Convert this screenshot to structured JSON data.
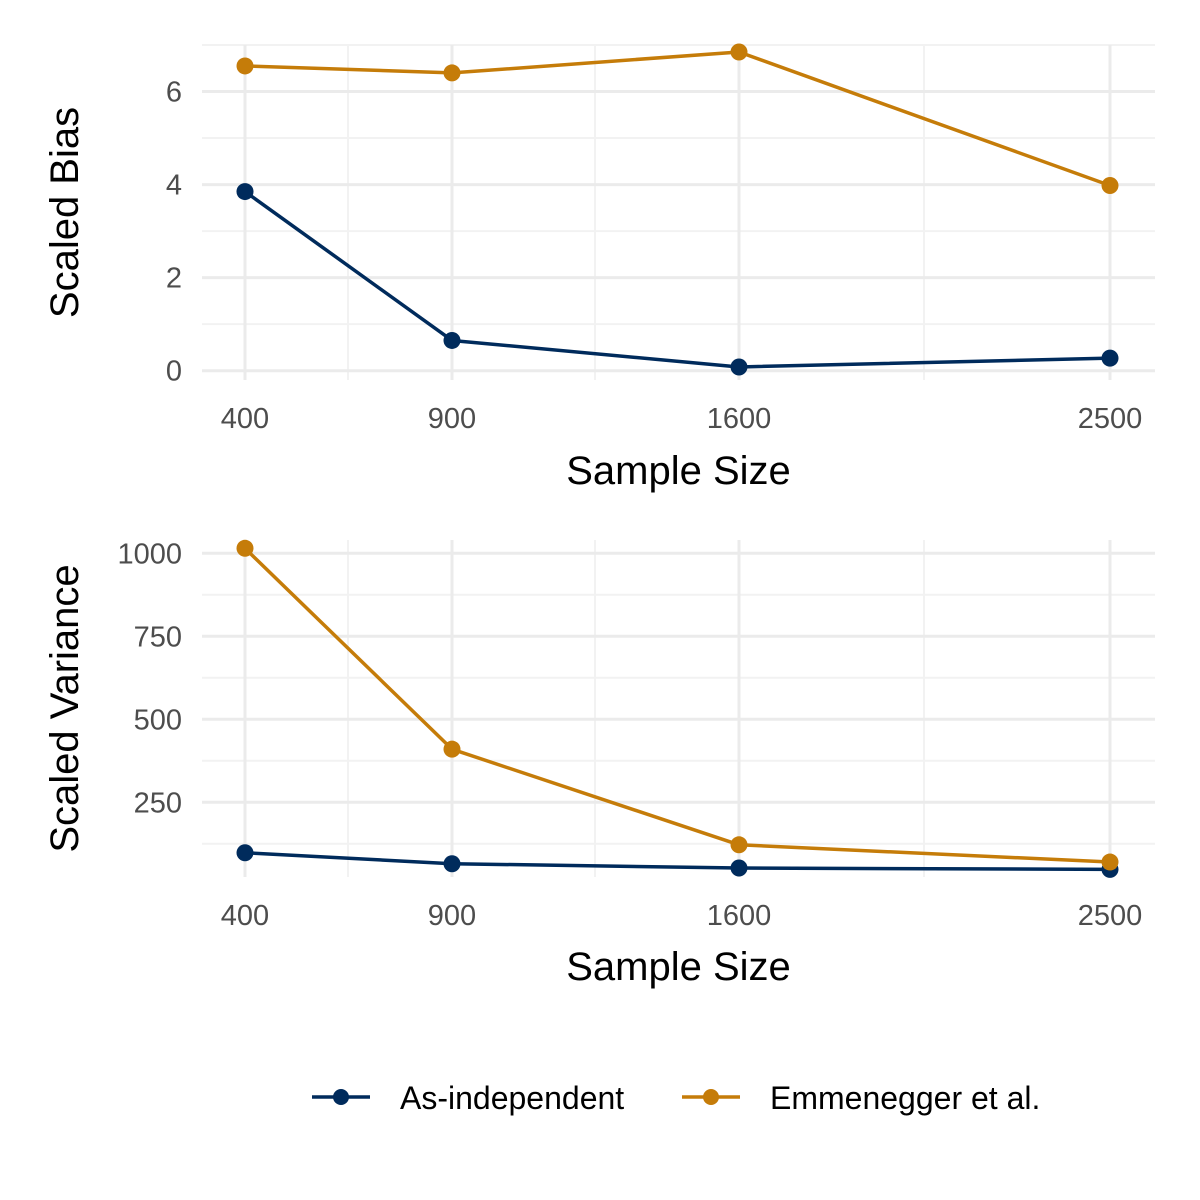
{
  "chart_data": [
    {
      "type": "line",
      "xlabel": "Sample Size",
      "ylabel": "Scaled Bias",
      "x_tick_labels": [
        "400",
        "900",
        "1600",
        "2500"
      ],
      "y_tick_labels": [
        "0",
        "2",
        "4",
        "6"
      ],
      "y_ticks": [
        0,
        2,
        4,
        6
      ],
      "ylim": [
        -0.2,
        7.0
      ],
      "x": [
        400,
        900,
        1600,
        2500
      ],
      "series": [
        {
          "name": "As-independent",
          "values": [
            3.85,
            0.65,
            0.08,
            0.27
          ]
        },
        {
          "name": "Emmenegger et al.",
          "values": [
            6.55,
            6.4,
            6.85,
            3.98
          ]
        }
      ]
    },
    {
      "type": "line",
      "xlabel": "Sample Size",
      "ylabel": "Scaled Variance",
      "x_tick_labels": [
        "400",
        "900",
        "1600",
        "2500"
      ],
      "y_tick_labels": [
        "250",
        "500",
        "750",
        "1000"
      ],
      "y_ticks": [
        250,
        500,
        750,
        1000
      ],
      "ylim": [
        25,
        1040
      ],
      "x": [
        400,
        900,
        1600,
        2500
      ],
      "series": [
        {
          "name": "As-independent",
          "values": [
            98,
            65,
            52,
            48
          ]
        },
        {
          "name": "Emmenegger et al.",
          "values": [
            1015,
            410,
            122,
            70
          ]
        }
      ]
    }
  ],
  "legend": {
    "items": [
      {
        "label": "As-independent",
        "color": "#002b5c"
      },
      {
        "label": "Emmenegger et al.",
        "color": "#c57c09"
      }
    ]
  }
}
